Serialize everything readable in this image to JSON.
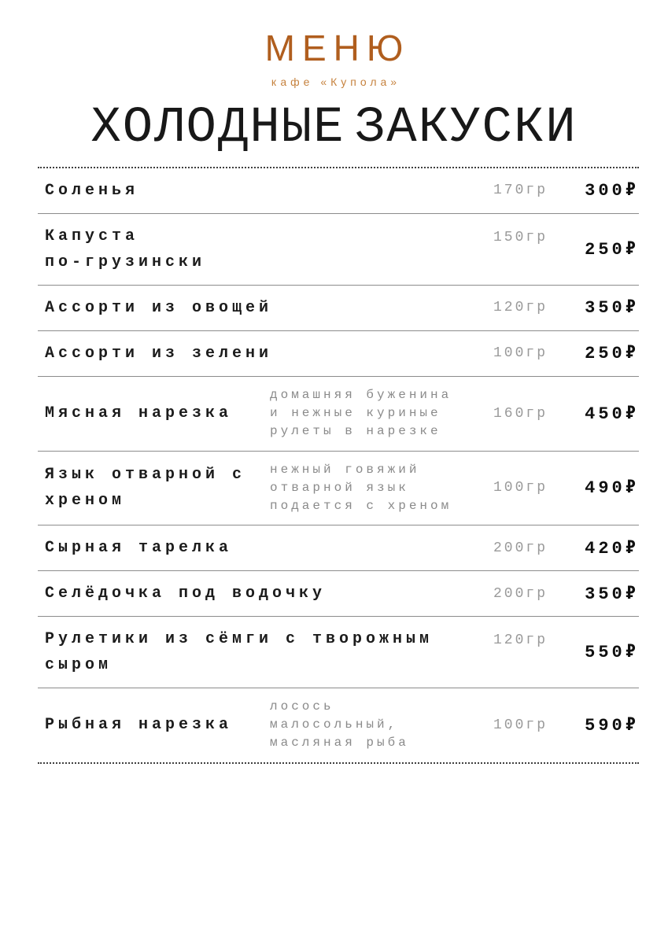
{
  "header": {
    "menu_label": "МЕНЮ",
    "cafe_name": "кафе «Купола»"
  },
  "section": {
    "title": "ХОЛОДНЫЕ ЗАКУСКИ"
  },
  "colors": {
    "accent": "#b05e1e",
    "accent_light": "#c6823e",
    "text": "#1c1c1c",
    "muted": "#8a8a8a",
    "divider": "#8c8c8c"
  },
  "menu": {
    "items": [
      {
        "name": "Соленья",
        "desc": "",
        "weight": "170гр",
        "price": "300₽"
      },
      {
        "name": "Капуста\nпо-грузински",
        "desc": "",
        "weight": "150гр",
        "price": "250₽"
      },
      {
        "name": "Ассорти из овощей",
        "desc": "",
        "weight": "120гр",
        "price": "350₽"
      },
      {
        "name": "Ассорти из зелени",
        "desc": "",
        "weight": "100гр",
        "price": "250₽"
      },
      {
        "name": "Мясная нарезка",
        "desc": "домашняя буженина\nи нежные куриные\nрулеты в нарезке",
        "weight": "160гр",
        "price": "450₽"
      },
      {
        "name": "Язык отварной с\nхреном",
        "desc": "нежный говяжий\nотварной язык\nподается с хреном",
        "weight": "100гр",
        "price": "490₽"
      },
      {
        "name": "Сырная тарелка",
        "desc": "",
        "weight": "200гр",
        "price": "420₽"
      },
      {
        "name": "Селёдочка под водочку",
        "desc": "",
        "weight": "200гр",
        "price": "350₽"
      },
      {
        "name": "Рулетики из сёмги с творожным\nсыром",
        "desc": "",
        "weight": "120гр",
        "price": "550₽"
      },
      {
        "name": "Рыбная нарезка",
        "desc": "лосось\nмалосольный,\nмасляная рыба",
        "weight": "100гр",
        "price": "590₽"
      }
    ]
  }
}
